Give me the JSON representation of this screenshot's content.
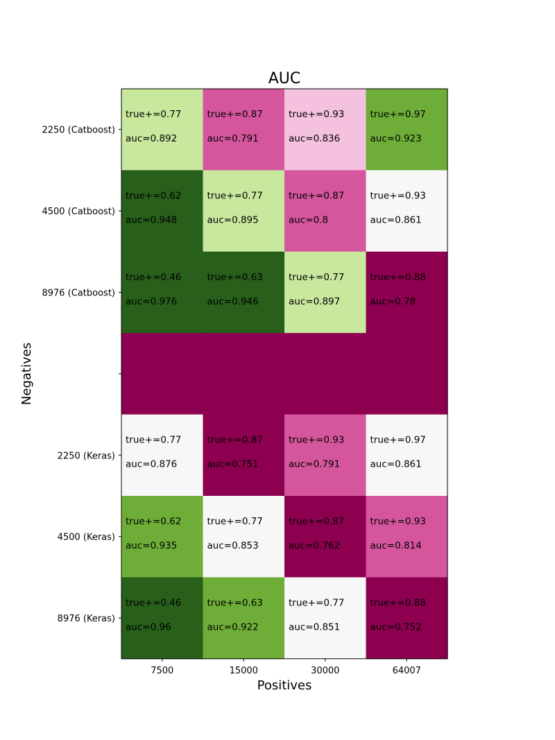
{
  "chart_data": {
    "type": "heatmap",
    "title": "AUC",
    "xlabel": "Positives",
    "ylabel": "Negatives",
    "x_categories": [
      "7500",
      "15000",
      "30000",
      "64007"
    ],
    "y_categories": [
      "2250 (Catboost)",
      "4500 (Catboost)",
      "8976 (Catboost)",
      "",
      "2250 (Keras)",
      "4500 (Keras)",
      "8976 (Keras)"
    ],
    "cells": [
      [
        {
          "true_pos": "true+=0.77",
          "auc": "auc=0.892",
          "color": "#c8e89e"
        },
        {
          "true_pos": "true+=0.87",
          "auc": "auc=0.791",
          "color": "#d5569d"
        },
        {
          "true_pos": "true+=0.93",
          "auc": "auc=0.836",
          "color": "#f4c2df"
        },
        {
          "true_pos": "true+=0.97",
          "auc": "auc=0.923",
          "color": "#6eae38"
        }
      ],
      [
        {
          "true_pos": "true+=0.62",
          "auc": "auc=0.948",
          "color": "#275f1b"
        },
        {
          "true_pos": "true+=0.77",
          "auc": "auc=0.895",
          "color": "#c8e89e"
        },
        {
          "true_pos": "true+=0.87",
          "auc": "auc=0.8",
          "color": "#d5569d"
        },
        {
          "true_pos": "true+=0.93",
          "auc": "auc=0.861",
          "color": "#f7f7f7"
        }
      ],
      [
        {
          "true_pos": "true+=0.46",
          "auc": "auc=0.976",
          "color": "#275f1b"
        },
        {
          "true_pos": "true+=0.63",
          "auc": "auc=0.946",
          "color": "#275f1b"
        },
        {
          "true_pos": "true+=0.77",
          "auc": "auc=0.897",
          "color": "#c8e89e"
        },
        {
          "true_pos": "true+=0.88",
          "auc": "auc=0.78",
          "color": "#8d0050"
        }
      ],
      [
        {
          "true_pos": "",
          "auc": "",
          "color": "#8d0050"
        },
        {
          "true_pos": "",
          "auc": "",
          "color": "#8d0050"
        },
        {
          "true_pos": "",
          "auc": "",
          "color": "#8d0050"
        },
        {
          "true_pos": "",
          "auc": "",
          "color": "#8d0050"
        }
      ],
      [
        {
          "true_pos": "true+=0.77",
          "auc": "auc=0.876",
          "color": "#f7f7f7"
        },
        {
          "true_pos": "true+=0.87",
          "auc": "auc=0.751",
          "color": "#8d0050"
        },
        {
          "true_pos": "true+=0.93",
          "auc": "auc=0.791",
          "color": "#d5569d"
        },
        {
          "true_pos": "true+=0.97",
          "auc": "auc=0.861",
          "color": "#f7f7f7"
        }
      ],
      [
        {
          "true_pos": "true+=0.62",
          "auc": "auc=0.935",
          "color": "#6eae38"
        },
        {
          "true_pos": "true+=0.77",
          "auc": "auc=0.853",
          "color": "#f7f7f7"
        },
        {
          "true_pos": "true+=0.87",
          "auc": "auc=0.762",
          "color": "#8d0050"
        },
        {
          "true_pos": "true+=0.93",
          "auc": "auc=0.814",
          "color": "#d5569d"
        }
      ],
      [
        {
          "true_pos": "true+=0.46",
          "auc": "auc=0.96",
          "color": "#275f1b"
        },
        {
          "true_pos": "true+=0.63",
          "auc": "auc=0.922",
          "color": "#6eae38"
        },
        {
          "true_pos": "true+=0.77",
          "auc": "auc=0.851",
          "color": "#f7f7f7"
        },
        {
          "true_pos": "true+=0.88",
          "auc": "auc=0.752",
          "color": "#8d0050"
        }
      ]
    ],
    "colormap": "PiYG",
    "grid": false,
    "legend": "none"
  }
}
